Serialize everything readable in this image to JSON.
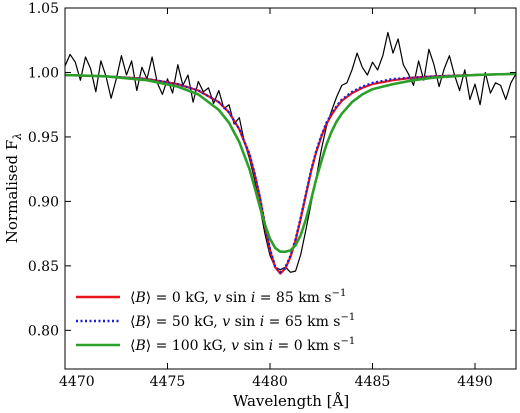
{
  "chart_data": {
    "type": "line",
    "xlabel": "Wavelength [Å]",
    "ylabel": "Normalised F",
    "ylabel_sub": "λ",
    "xlim": [
      4470,
      4492
    ],
    "ylim": [
      0.77,
      1.05
    ],
    "x_ticks": [
      4470,
      4475,
      4480,
      4485,
      4490
    ],
    "y_ticks": [
      0.8,
      0.85,
      0.9,
      0.95,
      1.0,
      1.05
    ],
    "grid": false,
    "legend_position": "lower-left",
    "legend": [
      {
        "color": "#e8141b",
        "style": "solid",
        "parts": [
          [
            "⟨",
            "n"
          ],
          [
            "B",
            "i"
          ],
          [
            "⟩ = 0 kG, ",
            "n"
          ],
          [
            "v",
            "i"
          ],
          [
            " sin ",
            "n"
          ],
          [
            "i",
            "i"
          ],
          [
            " = 85 km s",
            "n"
          ],
          [
            "−1",
            "sup"
          ]
        ]
      },
      {
        "color": "#1b1bd6",
        "style": "dotted",
        "parts": [
          [
            "⟨",
            "n"
          ],
          [
            "B",
            "i"
          ],
          [
            "⟩ = 50 kG, ",
            "n"
          ],
          [
            "v",
            "i"
          ],
          [
            " sin ",
            "n"
          ],
          [
            "i",
            "i"
          ],
          [
            " = 65 km s",
            "n"
          ],
          [
            "−1",
            "sup"
          ]
        ]
      },
      {
        "color": "#2aa02a",
        "style": "solid",
        "parts": [
          [
            "⟨",
            "n"
          ],
          [
            "B",
            "i"
          ],
          [
            "⟩ = 100 kG, ",
            "n"
          ],
          [
            "v",
            "i"
          ],
          [
            " sin ",
            "n"
          ],
          [
            "i",
            "i"
          ],
          [
            " = 0 km s",
            "n"
          ],
          [
            "−1",
            "sup"
          ]
        ]
      }
    ],
    "series": [
      {
        "color": "#000000",
        "style": "solid",
        "width": 1.2,
        "x": [
          4470.0,
          4470.25,
          4470.5,
          4470.75,
          4471.0,
          4471.25,
          4471.5,
          4471.75,
          4472.0,
          4472.25,
          4472.5,
          4472.75,
          4473.0,
          4473.25,
          4473.5,
          4473.75,
          4474.0,
          4474.25,
          4474.5,
          4474.75,
          4475.0,
          4475.25,
          4475.5,
          4475.75,
          4476.0,
          4476.25,
          4476.5,
          4476.75,
          4477.0,
          4477.25,
          4477.5,
          4477.75,
          4478.0,
          4478.25,
          4478.5,
          4478.75,
          4479.0,
          4479.25,
          4479.5,
          4479.75,
          4480.0,
          4480.25,
          4480.5,
          4480.75,
          4481.0,
          4481.25,
          4481.5,
          4481.75,
          4482.0,
          4482.25,
          4482.5,
          4482.75,
          4483.0,
          4483.25,
          4483.5,
          4483.75,
          4484.0,
          4484.25,
          4484.5,
          4484.75,
          4485.0,
          4485.25,
          4485.5,
          4485.75,
          4486.0,
          4486.25,
          4486.5,
          4486.75,
          4487.0,
          4487.25,
          4487.5,
          4487.75,
          4488.0,
          4488.25,
          4488.5,
          4488.75,
          4489.0,
          4489.25,
          4489.5,
          4489.75,
          4490.0,
          4490.25,
          4490.5,
          4490.75,
          4491.0,
          4491.25,
          4491.5,
          4491.75,
          4492.0
        ],
        "y": [
          1.005,
          1.014,
          1.008,
          0.994,
          1.012,
          1.003,
          0.985,
          1.009,
          0.997,
          0.98,
          0.995,
          1.013,
          0.998,
          1.009,
          0.986,
          1.004,
          0.995,
          1.012,
          0.992,
          0.983,
          0.995,
          0.984,
          1.006,
          0.99,
          0.998,
          0.977,
          0.993,
          0.985,
          0.988,
          0.976,
          0.986,
          0.972,
          0.975,
          0.96,
          0.965,
          0.946,
          0.933,
          0.917,
          0.896,
          0.875,
          0.858,
          0.849,
          0.847,
          0.849,
          0.845,
          0.846,
          0.859,
          0.878,
          0.898,
          0.918,
          0.94,
          0.958,
          0.97,
          0.981,
          0.99,
          0.992,
          1.002,
          1.015,
          1.004,
          0.998,
          1.008,
          1.002,
          1.013,
          1.031,
          1.015,
          1.026,
          1.006,
          0.999,
          0.99,
          1.009,
          0.994,
          1.018,
          1.006,
          0.989,
          1.003,
          1.013,
          0.998,
          0.986,
          1.002,
          0.979,
          0.991,
          0.975,
          1.0,
          0.984,
          0.992,
          0.99,
          0.979,
          0.992,
          0.999
        ]
      },
      {
        "color": "#e8141b",
        "style": "solid",
        "width": 2.2,
        "x": [
          4470.0,
          4472.0,
          4474.0,
          4475.5,
          4476.5,
          4477.5,
          4478.0,
          4478.5,
          4479.0,
          4479.25,
          4479.5,
          4479.75,
          4480.0,
          4480.25,
          4480.5,
          4480.75,
          4481.0,
          4481.25,
          4481.5,
          4481.75,
          4482.0,
          4482.25,
          4482.5,
          4482.75,
          4483.0,
          4483.25,
          4483.5,
          4484.0,
          4484.5,
          4485.0,
          4486.0,
          4487.0,
          4488.0,
          4490.0,
          4492.0
        ],
        "y": [
          0.998,
          0.997,
          0.995,
          0.991,
          0.986,
          0.977,
          0.969,
          0.956,
          0.936,
          0.921,
          0.903,
          0.882,
          0.862,
          0.849,
          0.844,
          0.848,
          0.857,
          0.87,
          0.887,
          0.905,
          0.923,
          0.938,
          0.95,
          0.96,
          0.967,
          0.973,
          0.978,
          0.984,
          0.988,
          0.991,
          0.994,
          0.996,
          0.997,
          0.998,
          0.999
        ]
      },
      {
        "color": "#1b1bd6",
        "style": "dotted",
        "width": 2.2,
        "x": [
          4470.0,
          4472.0,
          4474.0,
          4475.5,
          4476.5,
          4477.5,
          4478.0,
          4478.5,
          4479.0,
          4479.25,
          4479.5,
          4479.75,
          4480.0,
          4480.25,
          4480.5,
          4480.75,
          4481.0,
          4481.25,
          4481.5,
          4481.75,
          4482.0,
          4482.25,
          4482.5,
          4482.75,
          4483.0,
          4483.25,
          4483.5,
          4484.0,
          4484.5,
          4485.0,
          4486.0,
          4487.0,
          4488.0,
          4490.0,
          4492.0
        ],
        "y": [
          0.998,
          0.997,
          0.995,
          0.991,
          0.986,
          0.977,
          0.969,
          0.956,
          0.937,
          0.922,
          0.904,
          0.883,
          0.863,
          0.85,
          0.845,
          0.849,
          0.858,
          0.871,
          0.888,
          0.906,
          0.924,
          0.939,
          0.951,
          0.961,
          0.968,
          0.974,
          0.979,
          0.985,
          0.989,
          0.992,
          0.995,
          0.996,
          0.997,
          0.998,
          0.999
        ]
      },
      {
        "color": "#2aa02a",
        "style": "solid",
        "width": 2.6,
        "x": [
          4470.0,
          4472.0,
          4474.0,
          4475.5,
          4476.5,
          4477.5,
          4478.0,
          4478.5,
          4479.0,
          4479.25,
          4479.5,
          4479.75,
          4480.0,
          4480.25,
          4480.5,
          4480.75,
          4481.0,
          4481.25,
          4481.5,
          4481.75,
          4482.0,
          4482.25,
          4482.5,
          4482.75,
          4483.0,
          4483.25,
          4483.5,
          4484.0,
          4484.5,
          4485.0,
          4486.0,
          4487.0,
          4488.0,
          4490.0,
          4492.0
        ],
        "y": [
          0.998,
          0.997,
          0.994,
          0.989,
          0.983,
          0.971,
          0.961,
          0.946,
          0.925,
          0.911,
          0.896,
          0.882,
          0.871,
          0.864,
          0.861,
          0.861,
          0.862,
          0.866,
          0.874,
          0.886,
          0.901,
          0.917,
          0.931,
          0.944,
          0.954,
          0.962,
          0.968,
          0.977,
          0.983,
          0.987,
          0.991,
          0.994,
          0.996,
          0.998,
          0.999
        ]
      }
    ]
  }
}
